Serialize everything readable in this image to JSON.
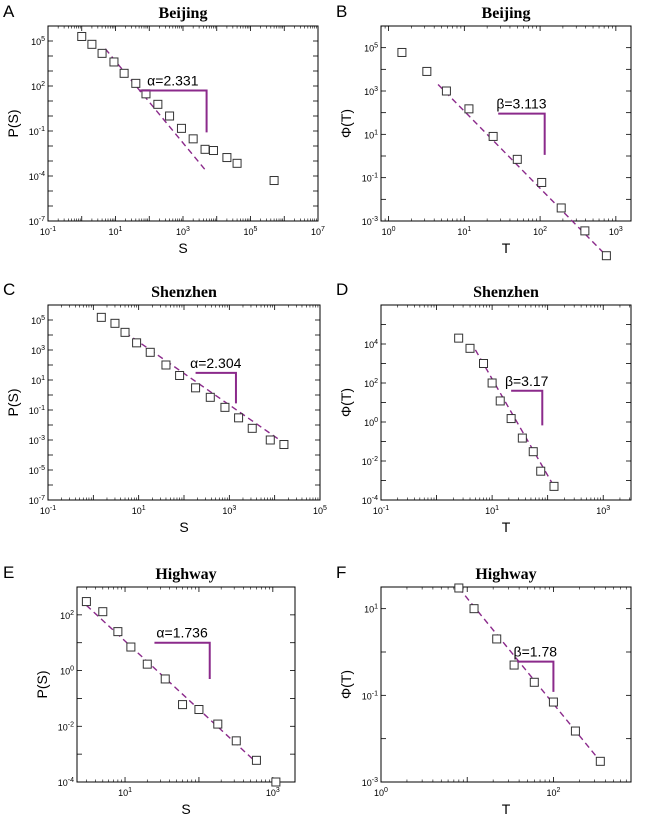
{
  "colors": {
    "fit": "#8b2a8b",
    "bracket": "#8b2a8b",
    "marker": "#333333",
    "axis": "#000000"
  },
  "chart_data": [
    {
      "type": "scatter",
      "panel": "A",
      "title": "Beijing",
      "xlabel": "S",
      "ylabel": "P(S)",
      "xscale": "log",
      "yscale": "log",
      "xlim_exp": [
        -1,
        7
      ],
      "ylim_exp": [
        -7,
        6
      ],
      "xticks_exp": [
        -1,
        1,
        3,
        5,
        7
      ],
      "yticks_exp": [
        -7,
        -4,
        -1,
        2,
        5
      ],
      "x": [
        1,
        2,
        4,
        9,
        18,
        40,
        80,
        180,
        400,
        900,
        2000,
        4500,
        8000,
        20000,
        40000,
        500000
      ],
      "y": [
        200000,
        60000,
        15000,
        4000,
        700,
        150,
        30,
        6,
        1,
        0.15,
        0.03,
        0.006,
        0.005,
        0.0017,
        0.0007,
        5e-05
      ],
      "fit": {
        "x": [
          5,
          5000
        ],
        "y": [
          30000,
          0.0002
        ]
      },
      "annotation": {
        "label": "α=2.331",
        "x1": 50,
        "x2": 5000,
        "y": 50,
        "y2": 0.0802
      }
    },
    {
      "type": "scatter",
      "panel": "B",
      "title": "Beijing",
      "xlabel": "T",
      "ylabel": "Φ(T)",
      "xscale": "log",
      "yscale": "log",
      "xlim_exp": [
        -0.1,
        3.2
      ],
      "ylim_exp": [
        -3,
        6
      ],
      "xticks_exp": [
        0,
        1,
        2,
        3
      ],
      "yticks_exp": [
        -3,
        -1,
        1,
        3,
        5
      ],
      "x": [
        1.5,
        3.2,
        5.8,
        11.5,
        24,
        50,
        105,
        190,
        390,
        750
      ],
      "y": [
        60000,
        8000,
        1000,
        150,
        8,
        0.7,
        0.06,
        0.004,
        0.00035,
        2.5e-05
      ],
      "fit": {
        "x": [
          4.5,
          750
        ],
        "y": [
          2000,
          2.5e-05
        ]
      },
      "annotation": {
        "label": "β=3.113",
        "x1": 28,
        "x2": 115,
        "y": 90,
        "y2": 1.12
      }
    },
    {
      "type": "scatter",
      "panel": "C",
      "title": "Shenzhen",
      "xlabel": "S",
      "ylabel": "P(S)",
      "xscale": "log",
      "yscale": "log",
      "xlim_exp": [
        -1,
        5
      ],
      "ylim_exp": [
        -7,
        6
      ],
      "xticks_exp": [
        -1,
        1,
        3,
        5
      ],
      "yticks_exp": [
        -7,
        -5,
        -3,
        -1,
        1,
        3,
        5
      ],
      "x": [
        1.5,
        3,
        5,
        9,
        18,
        40,
        80,
        180,
        380,
        800,
        1600,
        3200,
        8000,
        16000
      ],
      "y": [
        150000,
        60000,
        15000,
        3000,
        700,
        100,
        20,
        3,
        0.7,
        0.15,
        0.03,
        0.006,
        0.001,
        0.0005
      ],
      "fit": {
        "x": [
          5,
          20000
        ],
        "y": [
          15000,
          0.0004
        ]
      },
      "annotation": {
        "label": "α=2.304",
        "x1": 180,
        "x2": 1400,
        "y": 30,
        "y2": 0.2786
      }
    },
    {
      "type": "scatter",
      "panel": "D",
      "title": "Shenzhen",
      "xlabel": "T",
      "ylabel": "Φ(T)",
      "xscale": "log",
      "yscale": "log",
      "xlim_exp": [
        -1,
        3.5
      ],
      "ylim_exp": [
        -4,
        6
      ],
      "xticks_exp": [
        -1,
        1,
        3
      ],
      "yticks_exp": [
        -4,
        -2,
        0,
        2,
        4
      ],
      "x": [
        2.5,
        4,
        7,
        10,
        14,
        22,
        35,
        55,
        75,
        130
      ],
      "y": [
        20000,
        6000,
        1000,
        100,
        12,
        1.5,
        0.15,
        0.03,
        0.003,
        0.0005
      ],
      "fit": {
        "x": [
          5,
          130
        ],
        "y": [
          5000,
          0.0005
        ]
      },
      "annotation": {
        "label": "β=3.17",
        "x1": 22,
        "x2": 80,
        "y": 40,
        "y2": 0.67
      }
    },
    {
      "type": "scatter",
      "panel": "E",
      "title": "Highway",
      "xlabel": "S",
      "ylabel": "P(S)",
      "xscale": "log",
      "yscale": "log",
      "xlim_exp": [
        0.35,
        3.3
      ],
      "ylim_exp": [
        -4,
        3
      ],
      "xticks_exp": [
        1,
        3
      ],
      "yticks_exp": [
        -4,
        -2,
        0,
        2
      ],
      "x": [
        3,
        5,
        8,
        12,
        20,
        35,
        60,
        100,
        180,
        320,
        600,
        1100
      ],
      "y": [
        300,
        130,
        25,
        7,
        1.7,
        0.5,
        0.06,
        0.04,
        0.012,
        0.003,
        0.0006,
        0.0001
      ],
      "fit": {
        "x": [
          3,
          600
        ],
        "y": [
          220,
          0.0005
        ]
      },
      "annotation": {
        "label": "α=1.736",
        "x1": 25,
        "x2": 140,
        "y": 10,
        "y2": 0.5
      }
    },
    {
      "type": "scatter",
      "panel": "F",
      "title": "Highway",
      "xlabel": "T",
      "ylabel": "Φ(T)",
      "xscale": "log",
      "yscale": "log",
      "xlim_exp": [
        0,
        2.9
      ],
      "ylim_exp": [
        -3,
        1.5
      ],
      "xticks_exp": [
        0,
        2
      ],
      "yticks_exp": [
        -3,
        -1,
        1
      ],
      "x": [
        8,
        12,
        22,
        35,
        60,
        100,
        180,
        350
      ],
      "y": [
        30,
        10,
        2,
        0.5,
        0.2,
        0.07,
        0.015,
        0.003
      ],
      "fit": {
        "x": [
          8,
          350
        ],
        "y": [
          30,
          0.003
        ]
      },
      "annotation": {
        "label": "β=1.78",
        "x1": 38,
        "x2": 100,
        "y": 0.6,
        "y2": 0.12
      }
    }
  ]
}
